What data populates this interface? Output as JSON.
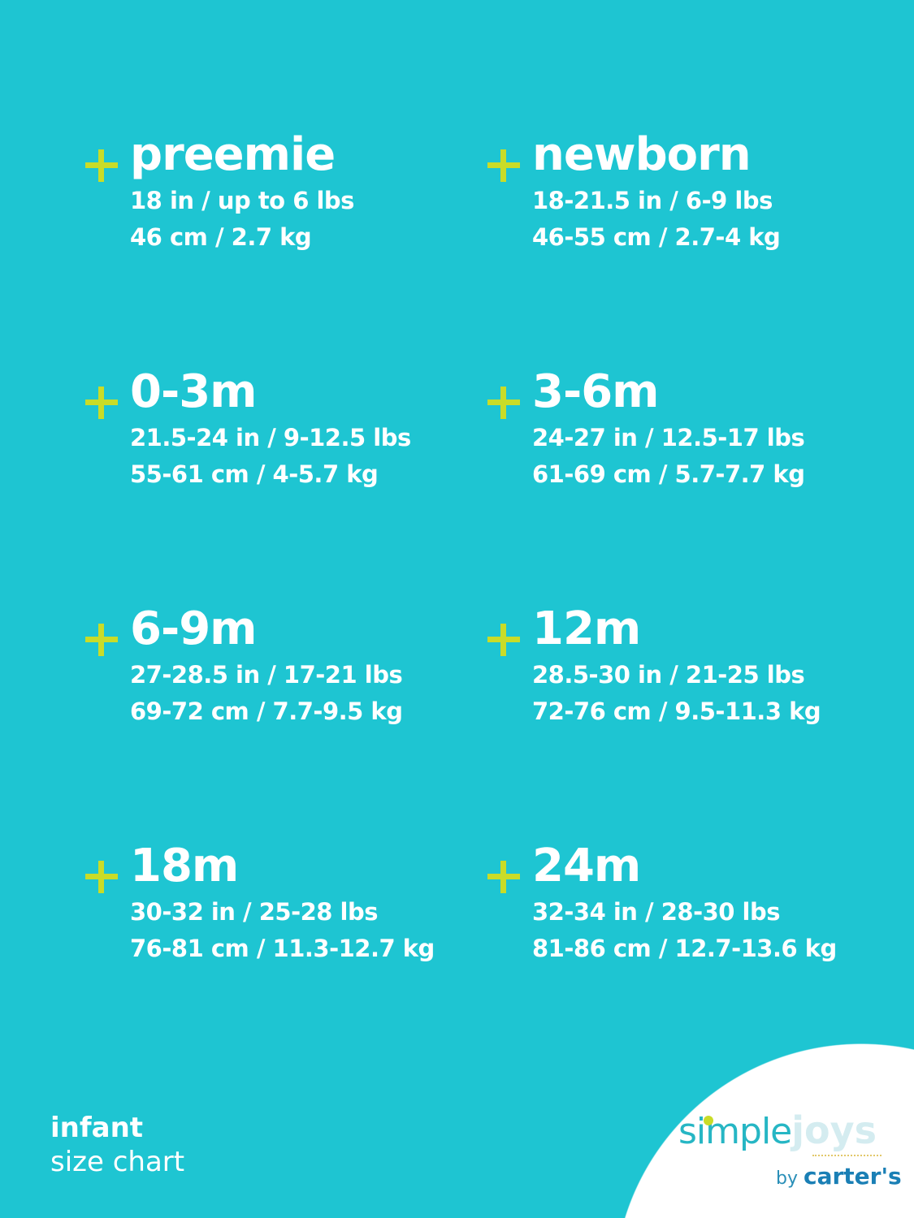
{
  "sizes": [
    {
      "title": "preemie",
      "imperial": "18 in / up to 6 lbs",
      "metric": "46 cm / 2.7 kg"
    },
    {
      "title": "newborn",
      "imperial": "18-21.5 in / 6-9 lbs",
      "metric": "46-55 cm / 2.7-4 kg"
    },
    {
      "title": "0-3m",
      "imperial": "21.5-24 in / 9-12.5 lbs",
      "metric": "55-61 cm / 4-5.7 kg"
    },
    {
      "title": "3-6m",
      "imperial": "24-27 in / 12.5-17 lbs",
      "metric": "61-69 cm / 5.7-7.7 kg"
    },
    {
      "title": "6-9m",
      "imperial": "27-28.5 in / 17-21 lbs",
      "metric": "69-72 cm / 7.7-9.5 kg"
    },
    {
      "title": "12m",
      "imperial": "28.5-30 in / 21-25 lbs",
      "metric": "72-76 cm / 9.5-11.3 kg"
    },
    {
      "title": "18m",
      "imperial": "30-32 in / 25-28 lbs",
      "metric": "76-81 cm / 11.3-12.7 kg"
    },
    {
      "title": "24m",
      "imperial": "32-34 in / 28-30 lbs",
      "metric": "81-86 cm / 12.7-13.6 kg"
    }
  ],
  "footer": {
    "line1": "infant",
    "line2": "size chart"
  },
  "logo": {
    "simple": "simple",
    "joys": "joys",
    "by": "by",
    "brand": "carter's"
  },
  "colors": {
    "background": "#1ec5d2",
    "plus": "#c9dc28",
    "logo_teal": "#26b6c4"
  }
}
